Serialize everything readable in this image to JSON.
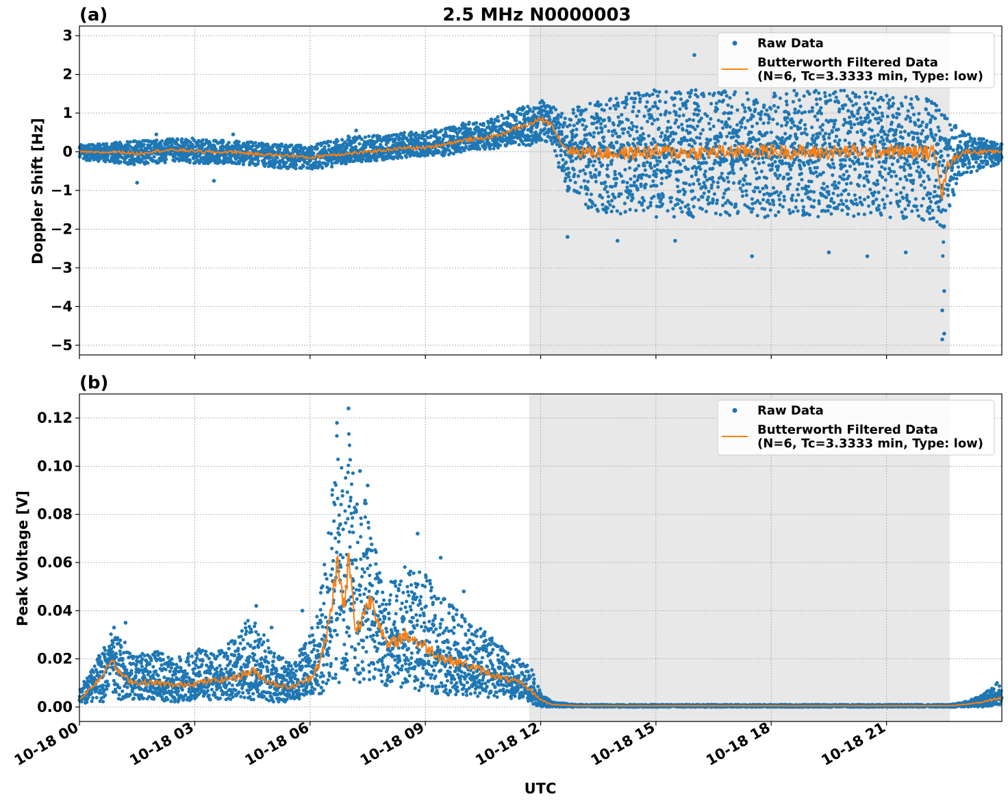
{
  "figure": {
    "title": "2.5 MHz N0000003",
    "xlabel": "UTC",
    "x_ticks": [
      "10-18 00",
      "10-18 03",
      "10-18 06",
      "10-18 09",
      "10-18 12",
      "10-18 15",
      "10-18 18",
      "10-18 21"
    ]
  },
  "colors": {
    "raw": "#1f77b4",
    "filtered": "#ff7f0e",
    "night_shade": "#e8e8e8",
    "grid": "#b0b0b0"
  },
  "legend": {
    "raw_label": "Raw Data",
    "filtered_label_line1": "Butterworth Filtered Data",
    "filtered_label_line2": "(N=6, Tc=3.3333 min, Type: low)",
    "placement": "top-right"
  },
  "chart_data": [
    {
      "panel_label": "(a)",
      "type": "scatter",
      "ylabel": "Doppler Shift [Hz]",
      "x_unit": "UTC hours on 10-18",
      "xlim": [
        0,
        24
      ],
      "ylim": [
        -5.25,
        3.25
      ],
      "y_ticks": [
        3,
        2,
        1,
        0,
        -1,
        -2,
        -3,
        -4,
        -5
      ],
      "y_tick_labels": [
        "3",
        "2",
        "1",
        "0",
        "−1",
        "−2",
        "−3",
        "−4",
        "−5"
      ],
      "grid": true,
      "shaded_interval_hours": [
        11.7,
        22.65
      ],
      "series": [
        {
          "name": "Butterworth Filtered Data (N=6, Tc=3.3333 min, Type: low)",
          "kind": "line",
          "x": [
            0,
            0.5,
            1,
            1.5,
            2,
            2.5,
            3,
            3.5,
            4,
            4.5,
            5,
            5.5,
            6,
            6.5,
            7,
            7.5,
            8,
            8.5,
            9,
            9.5,
            10,
            10.5,
            11,
            11.3,
            11.7,
            12.0,
            12.3,
            12.5,
            12.7,
            13,
            14,
            15,
            16,
            17,
            18,
            19,
            20,
            21,
            22,
            22.3,
            22.45,
            22.6,
            23,
            24
          ],
          "y": [
            0.0,
            -0.02,
            0.0,
            -0.05,
            0.02,
            0.05,
            0.02,
            -0.02,
            0.0,
            -0.05,
            -0.08,
            -0.1,
            -0.15,
            -0.08,
            -0.05,
            0.0,
            0.05,
            0.1,
            0.1,
            0.2,
            0.3,
            0.35,
            0.45,
            0.6,
            0.7,
            0.85,
            0.7,
            0.3,
            0.05,
            0.0,
            -0.05,
            0.0,
            -0.02,
            0.0,
            0.02,
            -0.02,
            0.0,
            0.02,
            -0.02,
            -0.05,
            -1.1,
            -0.3,
            0.0,
            0.0
          ]
        },
        {
          "name": "Raw Data",
          "kind": "scatter",
          "envelope_x": [
            0,
            0.5,
            1,
            1.5,
            2,
            2.5,
            3,
            3.5,
            4,
            4.5,
            5,
            5.5,
            6,
            6.5,
            7,
            7.5,
            8,
            8.5,
            9,
            9.5,
            10,
            10.5,
            11,
            11.3,
            11.7,
            12.0,
            12.3,
            12.5,
            12.7,
            13,
            14,
            15,
            16,
            17,
            18,
            19,
            20,
            21,
            22,
            22.3,
            22.45,
            22.6,
            23,
            24
          ],
          "envelope_upper": [
            0.2,
            0.2,
            0.25,
            0.3,
            0.3,
            0.35,
            0.35,
            0.3,
            0.3,
            0.25,
            0.2,
            0.2,
            0.15,
            0.3,
            0.4,
            0.4,
            0.45,
            0.5,
            0.55,
            0.6,
            0.75,
            0.8,
            0.95,
            1.1,
            1.2,
            1.35,
            1.2,
            1.0,
            1.0,
            1.2,
            1.5,
            1.6,
            1.6,
            1.6,
            1.6,
            1.6,
            1.6,
            1.5,
            1.4,
            1.3,
            1.0,
            0.9,
            0.5,
            0.2
          ],
          "envelope_lower": [
            -0.2,
            -0.25,
            -0.3,
            -0.35,
            -0.3,
            -0.25,
            -0.3,
            -0.3,
            -0.3,
            -0.35,
            -0.4,
            -0.45,
            -0.45,
            -0.4,
            -0.3,
            -0.25,
            -0.2,
            -0.15,
            -0.1,
            -0.1,
            0.0,
            0.05,
            0.1,
            0.2,
            0.15,
            0.3,
            0.2,
            -0.5,
            -1.0,
            -1.5,
            -1.6,
            -1.7,
            -1.7,
            -1.7,
            -1.7,
            -1.7,
            -1.7,
            -1.7,
            -1.8,
            -2.0,
            -3.0,
            -1.5,
            -0.6,
            -0.3
          ],
          "outliers": [
            [
              1.5,
              -0.8
            ],
            [
              2.0,
              0.45
            ],
            [
              3.5,
              -0.75
            ],
            [
              4.0,
              0.45
            ],
            [
              7.2,
              0.55
            ],
            [
              12.7,
              -2.2
            ],
            [
              14.0,
              -2.3
            ],
            [
              15.5,
              -2.3
            ],
            [
              16.0,
              2.5
            ],
            [
              17.5,
              -2.7
            ],
            [
              19.5,
              -2.6
            ],
            [
              20.5,
              -2.7
            ],
            [
              21.5,
              -2.6
            ],
            [
              22.45,
              -4.1
            ],
            [
              22.45,
              -4.85
            ],
            [
              22.5,
              -3.6
            ],
            [
              22.5,
              -4.7
            ]
          ]
        }
      ]
    },
    {
      "panel_label": "(b)",
      "type": "scatter",
      "ylabel": "Peak Voltage [V]",
      "x_unit": "UTC hours on 10-18",
      "xlim": [
        0,
        24
      ],
      "ylim": [
        -0.006,
        0.13
      ],
      "y_ticks": [
        0.12,
        0.1,
        0.08,
        0.06,
        0.04,
        0.02,
        0.0
      ],
      "y_tick_labels": [
        "0.12",
        "0.10",
        "0.08",
        "0.06",
        "0.04",
        "0.02",
        "0.00"
      ],
      "grid": true,
      "shaded_interval_hours": [
        11.7,
        22.65
      ],
      "series": [
        {
          "name": "Butterworth Filtered Data (N=6, Tc=3.3333 min, Type: low)",
          "kind": "line",
          "x": [
            0,
            0.3,
            0.6,
            0.8,
            1.0,
            1.2,
            1.5,
            2,
            2.5,
            3,
            3.5,
            4,
            4.5,
            5,
            5.5,
            6,
            6.3,
            6.5,
            6.7,
            6.9,
            7.0,
            7.2,
            7.4,
            7.6,
            8,
            8.5,
            9,
            9.5,
            10,
            10.5,
            11,
            11.5,
            11.8,
            12,
            12.3,
            13,
            14,
            16,
            18,
            20,
            22,
            22.65,
            23,
            23.5,
            24
          ],
          "y": [
            0.003,
            0.008,
            0.013,
            0.02,
            0.015,
            0.012,
            0.01,
            0.01,
            0.009,
            0.01,
            0.011,
            0.012,
            0.015,
            0.01,
            0.008,
            0.012,
            0.02,
            0.035,
            0.06,
            0.04,
            0.062,
            0.03,
            0.04,
            0.045,
            0.025,
            0.03,
            0.025,
            0.02,
            0.018,
            0.015,
            0.012,
            0.01,
            0.006,
            0.003,
            0.001,
            0.0005,
            0.0005,
            0.0005,
            0.0005,
            0.0005,
            0.0005,
            0.0005,
            0.001,
            0.002,
            0.004
          ]
        },
        {
          "name": "Raw Data",
          "kind": "scatter",
          "envelope_x": [
            0,
            0.3,
            0.6,
            0.8,
            1.0,
            1.2,
            1.5,
            2,
            2.5,
            3,
            3.5,
            4,
            4.5,
            5,
            5.5,
            6,
            6.3,
            6.5,
            6.7,
            6.9,
            7.0,
            7.2,
            7.4,
            7.6,
            8,
            8.5,
            9,
            9.5,
            10,
            10.5,
            11,
            11.5,
            11.8,
            12,
            12.3,
            13,
            14,
            16,
            18,
            20,
            22,
            22.65,
            23,
            23.5,
            24
          ],
          "envelope_upper": [
            0.008,
            0.015,
            0.025,
            0.032,
            0.03,
            0.027,
            0.022,
            0.024,
            0.02,
            0.025,
            0.022,
            0.028,
            0.04,
            0.025,
            0.018,
            0.03,
            0.05,
            0.08,
            0.115,
            0.09,
            0.12,
            0.085,
            0.09,
            0.075,
            0.05,
            0.06,
            0.055,
            0.045,
            0.038,
            0.032,
            0.025,
            0.02,
            0.015,
            0.006,
            0.002,
            0.001,
            0.001,
            0.001,
            0.001,
            0.001,
            0.001,
            0.001,
            0.002,
            0.005,
            0.012
          ],
          "envelope_lower": [
            0.001,
            0.002,
            0.002,
            0.003,
            0.003,
            0.003,
            0.003,
            0.003,
            0.002,
            0.003,
            0.003,
            0.003,
            0.003,
            0.002,
            0.002,
            0.004,
            0.005,
            0.008,
            0.01,
            0.01,
            0.012,
            0.01,
            0.01,
            0.01,
            0.008,
            0.007,
            0.006,
            0.005,
            0.005,
            0.004,
            0.004,
            0.003,
            0.001,
            0.0,
            0.0,
            0.0,
            0.0,
            0.0,
            0.0,
            0.0,
            0.0,
            0.0,
            0.0,
            0.0,
            0.001
          ],
          "outliers": [
            [
              0.9,
              0.033
            ],
            [
              1.2,
              0.035
            ],
            [
              4.6,
              0.042
            ],
            [
              5.0,
              0.033
            ],
            [
              5.8,
              0.04
            ],
            [
              6.7,
              0.118
            ],
            [
              7.0,
              0.124
            ],
            [
              7.3,
              0.098
            ],
            [
              7.5,
              0.092
            ],
            [
              8.8,
              0.072
            ],
            [
              9.4,
              0.062
            ],
            [
              10.0,
              0.048
            ]
          ]
        }
      ]
    }
  ]
}
